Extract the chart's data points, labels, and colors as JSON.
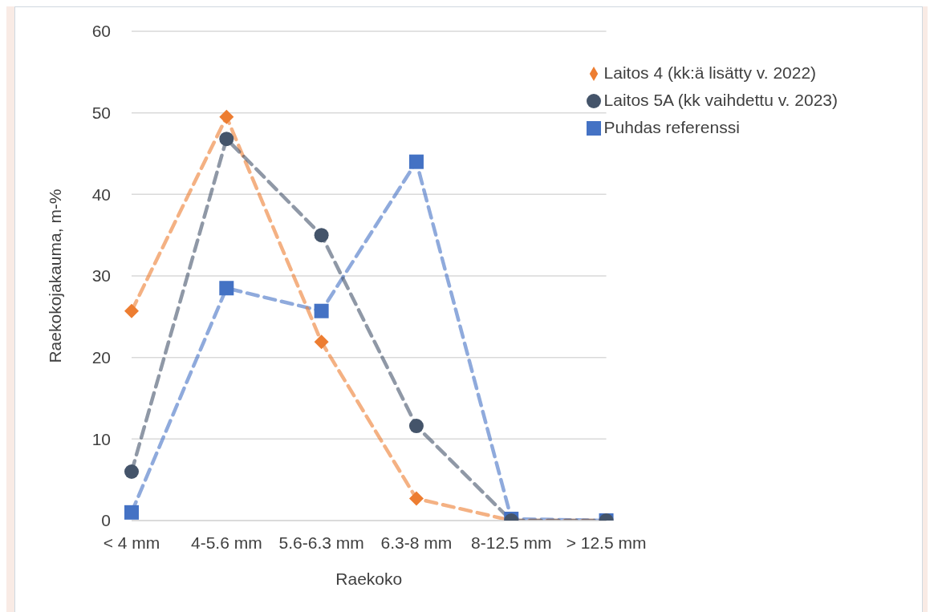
{
  "chart_data": {
    "type": "line",
    "xlabel": "Raekoko",
    "ylabel": "Raekokojakauma, m-%",
    "categories": [
      "< 4 mm",
      "4-5.6 mm",
      "5.6-6.3 mm",
      "6.3-8 mm",
      "8-12.5 mm",
      "> 12.5 mm"
    ],
    "series": [
      {
        "name": "Puhdas referenssi",
        "color": "#4472c4",
        "marker": "square",
        "values": [
          1,
          28.5,
          25.7,
          44,
          0.2,
          0
        ]
      },
      {
        "name": "Laitos 4 (kk:ä lisätty v. 2022)",
        "color": "#ed7d31",
        "marker": "diamond",
        "values": [
          25.7,
          49.5,
          21.9,
          2.7,
          0,
          0
        ]
      },
      {
        "name": "Laitos 5A (kk vaihdettu v. 2023)",
        "color": "#44546a",
        "marker": "circle",
        "values": [
          6,
          46.8,
          35,
          11.6,
          0,
          0
        ]
      }
    ],
    "ylim": [
      0,
      60
    ],
    "yticks": [
      0,
      10,
      20,
      30,
      40,
      50,
      60
    ],
    "grid": "y",
    "legend": "top right",
    "line_style": "dashed"
  }
}
